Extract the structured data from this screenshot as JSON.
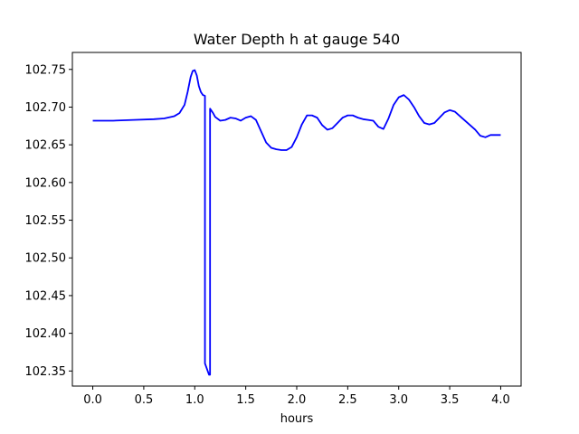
{
  "chart_data": {
    "type": "line",
    "title": "Water Depth h at gauge 540",
    "xlabel": "hours",
    "ylabel": "",
    "xlim": [
      -0.2,
      4.2
    ],
    "ylim": [
      102.33,
      102.7725
    ],
    "xticks": [
      0.0,
      0.5,
      1.0,
      1.5,
      2.0,
      2.5,
      3.0,
      3.5,
      4.0
    ],
    "xtick_labels": [
      "0.0",
      "0.5",
      "1.0",
      "1.5",
      "2.0",
      "2.5",
      "3.0",
      "3.5",
      "4.0"
    ],
    "yticks": [
      102.35,
      102.4,
      102.45,
      102.5,
      102.55,
      102.6,
      102.65,
      102.7,
      102.75
    ],
    "ytick_labels": [
      "102.35",
      "102.40",
      "102.45",
      "102.50",
      "102.55",
      "102.60",
      "102.65",
      "102.70",
      "102.75"
    ],
    "grid": false,
    "legend": "none",
    "line_color": "#0000ff",
    "series": [
      {
        "x": [
          0.0,
          0.2,
          0.4,
          0.6,
          0.7,
          0.8,
          0.85,
          0.9,
          0.93,
          0.96,
          0.98,
          1.0,
          1.02,
          1.04,
          1.06,
          1.08,
          1.1,
          1.1,
          1.14,
          1.15,
          1.15,
          1.18,
          1.2,
          1.25,
          1.3,
          1.35,
          1.4,
          1.45,
          1.5,
          1.55,
          1.6,
          1.65,
          1.7,
          1.75,
          1.8,
          1.85,
          1.9,
          1.95,
          2.0,
          2.05,
          2.1,
          2.15,
          2.2,
          2.25,
          2.3,
          2.35,
          2.4,
          2.45,
          2.5,
          2.55,
          2.6,
          2.65,
          2.7,
          2.75,
          2.8,
          2.85,
          2.9,
          2.95,
          3.0,
          3.05,
          3.1,
          3.15,
          3.2,
          3.25,
          3.3,
          3.35,
          3.4,
          3.45,
          3.5,
          3.55,
          3.6,
          3.65,
          3.7,
          3.75,
          3.8,
          3.85,
          3.9,
          3.95,
          4.0
        ],
        "y": [
          102.682,
          102.682,
          102.683,
          102.684,
          102.685,
          102.688,
          102.692,
          102.703,
          102.72,
          102.74,
          102.748,
          102.749,
          102.742,
          102.728,
          102.72,
          102.716,
          102.715,
          102.36,
          102.345,
          102.345,
          102.698,
          102.692,
          102.687,
          102.682,
          102.683,
          102.686,
          102.685,
          102.682,
          102.686,
          102.688,
          102.683,
          102.668,
          102.653,
          102.646,
          102.644,
          102.643,
          102.643,
          102.647,
          102.66,
          102.677,
          102.689,
          102.689,
          102.686,
          102.676,
          102.67,
          102.672,
          102.679,
          102.686,
          102.689,
          102.689,
          102.686,
          102.684,
          102.683,
          102.682,
          102.674,
          102.671,
          102.685,
          102.703,
          102.713,
          102.716,
          102.71,
          102.7,
          102.688,
          102.679,
          102.677,
          102.679,
          102.686,
          102.693,
          102.696,
          102.694,
          102.688,
          102.682,
          102.676,
          102.67,
          102.662,
          102.66,
          102.663,
          102.663,
          102.663
        ]
      }
    ]
  }
}
